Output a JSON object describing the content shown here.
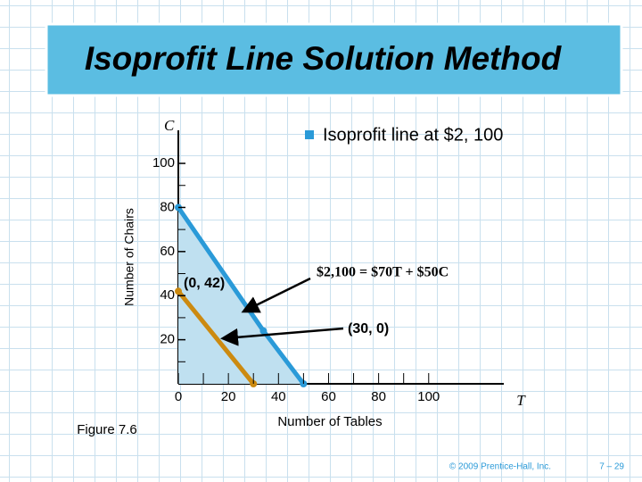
{
  "title": "Isoprofit Line Solution Method",
  "bullet": "Isoprofit line at $2, 100",
  "figure_label": "Figure 7.6",
  "footer": {
    "copyright": "© 2009 Prentice-Hall, Inc.",
    "page": "7 – 29"
  },
  "chart_data": {
    "type": "lp",
    "x_symbol": "T",
    "y_symbol": "C",
    "xlabel": "Number of Tables",
    "ylabel": "Number of Chairs",
    "xlim": [
      0,
      130
    ],
    "ylim": [
      0,
      115
    ],
    "xticks": [
      0,
      20,
      40,
      60,
      80,
      100
    ],
    "yticks": [
      20,
      40,
      60,
      80,
      100
    ],
    "feasible_region": {
      "x": [
        0,
        0,
        34,
        50
      ],
      "y": [
        0,
        80,
        24,
        0
      ],
      "fill": "#bfe0f0",
      "edge_color": "#2a9ad8"
    },
    "isoprofit_line": {
      "x": [
        0,
        30
      ],
      "y": [
        42,
        0
      ],
      "color": "#cc8a10"
    },
    "annotations": [
      "(0, 42)",
      "$2,100 = $70T + $50C",
      "(30, 0)"
    ]
  }
}
